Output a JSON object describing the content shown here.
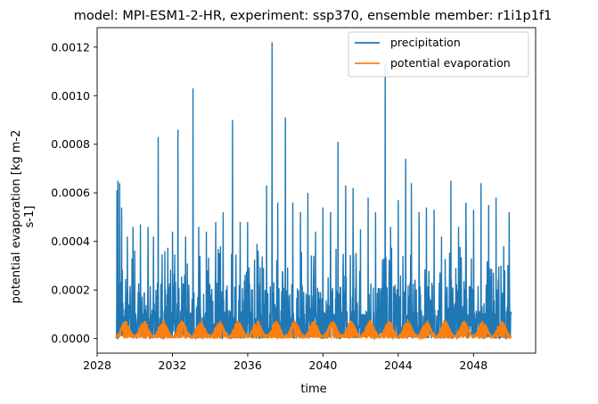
{
  "chart_data": {
    "type": "line",
    "title": "model: MPI-ESM1-2-HR, experiment: ssp370, ensemble member: r1i1p1f1",
    "xlabel": "time",
    "ylabel_lines": [
      "potential evaporation [kg m-2",
      "s-1]"
    ],
    "xlim": [
      2028.0,
      2051.3
    ],
    "ylim": [
      -6e-05,
      0.00128
    ],
    "x_ticks": [
      2028,
      2032,
      2036,
      2040,
      2044,
      2048
    ],
    "x_tick_labels": [
      "2028",
      "2032",
      "2036",
      "2040",
      "2044",
      "2048"
    ],
    "y_ticks": [
      0.0,
      0.0002,
      0.0004,
      0.0006,
      0.0008,
      0.001,
      0.0012
    ],
    "y_tick_labels": [
      "0.0000",
      "0.0002",
      "0.0004",
      "0.0006",
      "0.0008",
      "0.0010",
      "0.0012"
    ],
    "grid": false,
    "legend_location": "top-right",
    "series": [
      {
        "name": "precipitation",
        "color": "#1f77b4",
        "x_range": [
          2029.0,
          2050.0
        ],
        "peaks": [
          [
            2029.05,
            0.00061
          ],
          [
            2029.1,
            0.00065
          ],
          [
            2029.2,
            0.00064
          ],
          [
            2029.3,
            0.00054
          ],
          [
            2029.6,
            0.00042
          ],
          [
            2029.9,
            0.00046
          ],
          [
            2030.3,
            0.00047
          ],
          [
            2030.7,
            0.00046
          ],
          [
            2031.0,
            0.00042
          ],
          [
            2031.25,
            0.00083
          ],
          [
            2031.6,
            0.00036
          ],
          [
            2032.0,
            0.00044
          ],
          [
            2032.3,
            0.00086
          ],
          [
            2032.7,
            0.00042
          ],
          [
            2033.1,
            0.00103
          ],
          [
            2033.4,
            0.00046
          ],
          [
            2033.8,
            0.00044
          ],
          [
            2034.3,
            0.00048
          ],
          [
            2034.7,
            0.00052
          ],
          [
            2035.2,
            0.0009
          ],
          [
            2035.6,
            0.00048
          ],
          [
            2036.0,
            0.00048
          ],
          [
            2036.5,
            0.00039
          ],
          [
            2037.0,
            0.00063
          ],
          [
            2037.3,
            0.00122
          ],
          [
            2037.6,
            0.00056
          ],
          [
            2038.0,
            0.00091
          ],
          [
            2038.4,
            0.00056
          ],
          [
            2038.8,
            0.00052
          ],
          [
            2039.2,
            0.0006
          ],
          [
            2039.6,
            0.00044
          ],
          [
            2040.0,
            0.00054
          ],
          [
            2040.4,
            0.00052
          ],
          [
            2040.8,
            0.00081
          ],
          [
            2041.2,
            0.00063
          ],
          [
            2041.6,
            0.00062
          ],
          [
            2042.0,
            0.00045
          ],
          [
            2042.4,
            0.00058
          ],
          [
            2042.8,
            0.00052
          ],
          [
            2043.3,
            0.00113
          ],
          [
            2043.6,
            0.00046
          ],
          [
            2044.0,
            0.00057
          ],
          [
            2044.4,
            0.00074
          ],
          [
            2044.7,
            0.00064
          ],
          [
            2045.1,
            0.00052
          ],
          [
            2045.5,
            0.00054
          ],
          [
            2045.9,
            0.00053
          ],
          [
            2046.3,
            0.00042
          ],
          [
            2046.8,
            0.00065
          ],
          [
            2047.2,
            0.00046
          ],
          [
            2047.6,
            0.00056
          ],
          [
            2048.0,
            0.00053
          ],
          [
            2048.4,
            0.00064
          ],
          [
            2048.8,
            0.00055
          ],
          [
            2049.2,
            0.00058
          ],
          [
            2049.6,
            0.00038
          ],
          [
            2049.9,
            0.00052
          ]
        ]
      },
      {
        "name": "potential evaporation",
        "color": "#ff7f0e",
        "x_range": [
          2029.0,
          2050.0
        ],
        "seasonal_cycle": {
          "min": 0.0,
          "max": 7.5e-05,
          "period_years": 1
        }
      }
    ]
  }
}
